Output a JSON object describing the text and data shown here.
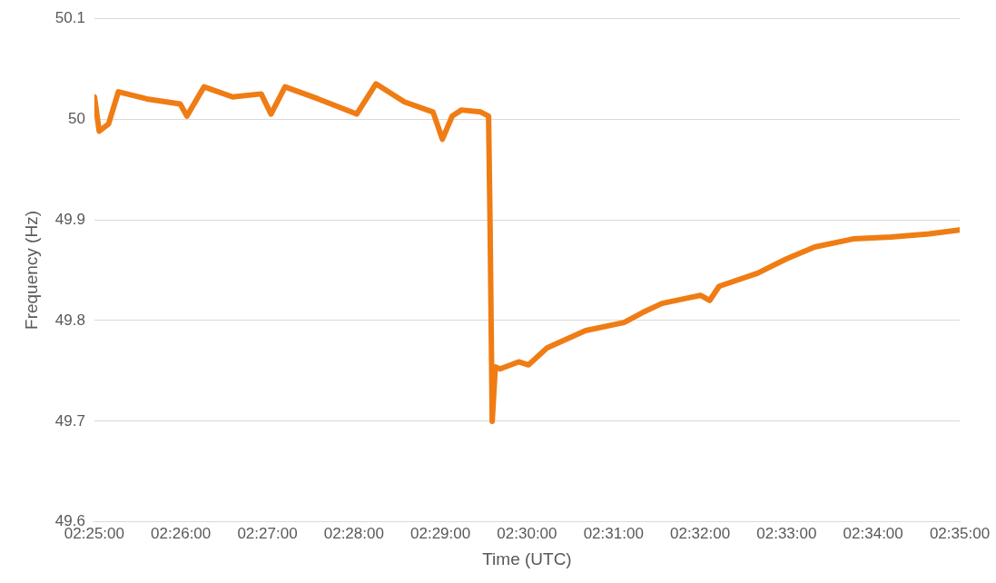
{
  "chart_data": {
    "type": "line",
    "xlabel": "Time (UTC)",
    "ylabel": "Frequency (Hz)",
    "xlim": [
      2.416667,
      2.583333
    ],
    "xticks": [
      {
        "value": 2.416667,
        "label": "02:25:00"
      },
      {
        "value": 2.433333,
        "label": "02:26:00"
      },
      {
        "value": 2.45,
        "label": "02:27:00"
      },
      {
        "value": 2.466667,
        "label": "02:28:00"
      },
      {
        "value": 2.483333,
        "label": "02:29:00"
      },
      {
        "value": 2.5,
        "label": "02:30:00"
      },
      {
        "value": 2.516667,
        "label": "02:31:00"
      },
      {
        "value": 2.533333,
        "label": "02:32:00"
      },
      {
        "value": 2.55,
        "label": "02:33:00"
      },
      {
        "value": 2.566667,
        "label": "02:34:00"
      },
      {
        "value": 2.583333,
        "label": "02:35:00"
      }
    ],
    "ylim": [
      49.6,
      50.1
    ],
    "yticks": [
      49.6,
      49.7,
      49.8,
      49.9,
      50,
      50.1
    ],
    "grid": "y",
    "legend": false,
    "marker": "none",
    "line_style": "solid",
    "x": [
      2.4167,
      2.4176,
      2.4194,
      2.4213,
      2.4268,
      2.4332,
      2.4345,
      2.4378,
      2.4433,
      2.4488,
      2.4507,
      2.4534,
      2.4598,
      2.4672,
      2.4709,
      2.4764,
      2.4819,
      2.4837,
      2.4856,
      2.4874,
      2.4911,
      2.4926,
      2.4929,
      2.4933,
      2.4939,
      2.4948,
      2.4984,
      2.5003,
      2.5039,
      2.5113,
      2.5187,
      2.5223,
      2.526,
      2.5334,
      2.5352,
      2.537,
      2.5444,
      2.5499,
      2.5554,
      2.5628,
      2.5701,
      2.5775,
      2.5833
    ],
    "series": [
      {
        "color": "#f07c14",
        "values": [
          50.022,
          49.988,
          49.995,
          50.027,
          50.02,
          50.015,
          50.003,
          50.032,
          50.022,
          50.025,
          50.005,
          50.032,
          50.02,
          50.005,
          50.035,
          50.017,
          50.007,
          49.98,
          50.003,
          50.009,
          50.007,
          50.003,
          49.89,
          49.7,
          49.754,
          49.752,
          49.759,
          49.756,
          49.773,
          49.79,
          49.798,
          49.808,
          49.817,
          49.825,
          49.82,
          49.834,
          49.847,
          49.861,
          49.873,
          49.881,
          49.883,
          49.886,
          49.89
        ]
      }
    ]
  }
}
